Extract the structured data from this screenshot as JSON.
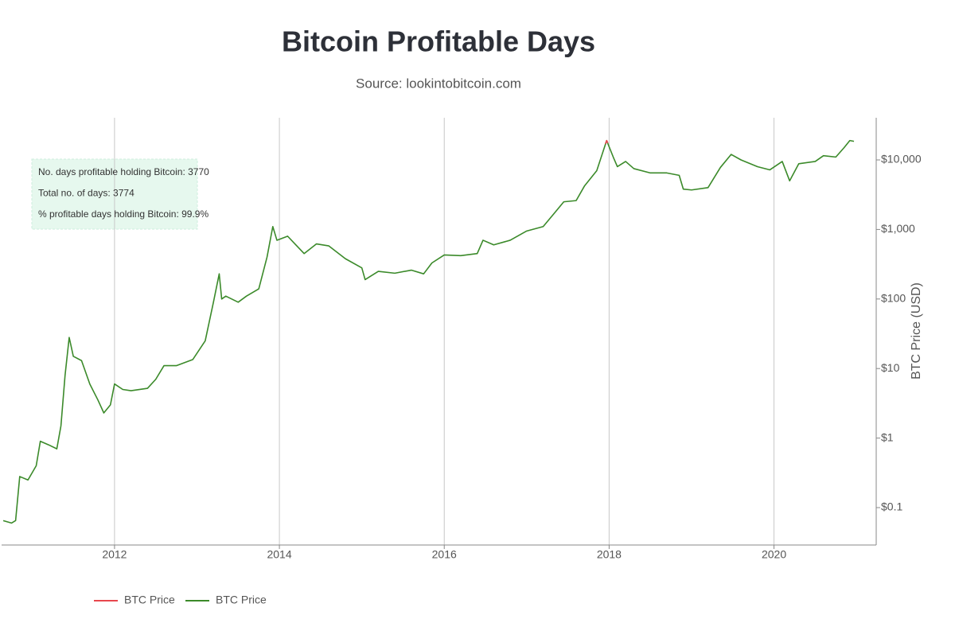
{
  "chart_data": {
    "type": "line",
    "title": "Bitcoin Profitable Days",
    "subtitle": "Source: lookintobitcoin.com",
    "y_axis_label": "BTC Price (USD)",
    "y_scale": "log",
    "y_axis_side": "right",
    "grid": "x",
    "legend": "bottom-left",
    "annotations": [
      "No. days profitable holding Bitcoin: 3770",
      "Total no. of days: 3774",
      "% profitable days holding Bitcoin: 99.9%"
    ],
    "xlim": [
      2010.63,
      2021.24
    ],
    "xticks": [
      2012,
      2014,
      2016,
      2018,
      2020
    ],
    "ylim": [
      0.029,
      40400
    ],
    "yticks": [
      {
        "value": 0.1,
        "label": "$0.1"
      },
      {
        "value": 1,
        "label": "$1"
      },
      {
        "value": 10,
        "label": "$10"
      },
      {
        "value": 100,
        "label": "$100"
      },
      {
        "value": 1000,
        "label": "$1,000"
      },
      {
        "value": 10000,
        "label": "$10,000"
      }
    ],
    "x": [
      2010.65,
      2010.75,
      2010.8,
      2010.85,
      2010.95,
      2011.05,
      2011.1,
      2011.2,
      2011.3,
      2011.35,
      2011.4,
      2011.45,
      2011.5,
      2011.6,
      2011.7,
      2011.8,
      2011.87,
      2011.95,
      2012.0,
      2012.1,
      2012.2,
      2012.4,
      2012.5,
      2012.6,
      2012.75,
      2012.95,
      2013.1,
      2013.2,
      2013.27,
      2013.3,
      2013.35,
      2013.5,
      2013.6,
      2013.75,
      2013.85,
      2013.92,
      2013.97,
      2014.1,
      2014.2,
      2014.3,
      2014.45,
      2014.6,
      2014.8,
      2015.0,
      2015.04,
      2015.2,
      2015.4,
      2015.6,
      2015.75,
      2015.85,
      2016.0,
      2016.2,
      2016.4,
      2016.47,
      2016.6,
      2016.8,
      2017.0,
      2017.2,
      2017.35,
      2017.45,
      2017.6,
      2017.7,
      2017.85,
      2017.97,
      2018.05,
      2018.1,
      2018.2,
      2018.3,
      2018.5,
      2018.7,
      2018.85,
      2018.9,
      2019.0,
      2019.2,
      2019.35,
      2019.48,
      2019.6,
      2019.8,
      2019.95,
      2020.1,
      2020.19,
      2020.3,
      2020.5,
      2020.6,
      2020.75,
      2020.85,
      2020.92,
      2020.97
    ],
    "series": [
      {
        "name": "BTC Price",
        "color": "#e8474d",
        "x": [
          2017.955,
          2017.97,
          2017.985
        ],
        "values": [
          17000,
          19000,
          17500
        ]
      },
      {
        "name": "BTC Price",
        "color": "#3b8a2a",
        "values": [
          0.065,
          0.06,
          0.065,
          0.28,
          0.25,
          0.4,
          0.9,
          0.8,
          0.7,
          1.5,
          8,
          28,
          15,
          13,
          6,
          3.5,
          2.3,
          3,
          6,
          5,
          4.8,
          5.2,
          7,
          11,
          11,
          13.5,
          25,
          90,
          230,
          100,
          110,
          90,
          110,
          140,
          400,
          1100,
          700,
          800,
          600,
          450,
          620,
          580,
          380,
          280,
          190,
          250,
          235,
          260,
          230,
          330,
          430,
          420,
          450,
          700,
          600,
          700,
          950,
          1100,
          1800,
          2500,
          2600,
          4200,
          7000,
          19000,
          11000,
          8000,
          9500,
          7500,
          6500,
          6500,
          6000,
          3800,
          3700,
          4000,
          7800,
          12000,
          10000,
          8000,
          7200,
          9500,
          5000,
          8800,
          9500,
          11500,
          11000,
          15000,
          19000,
          18500
        ]
      }
    ]
  }
}
